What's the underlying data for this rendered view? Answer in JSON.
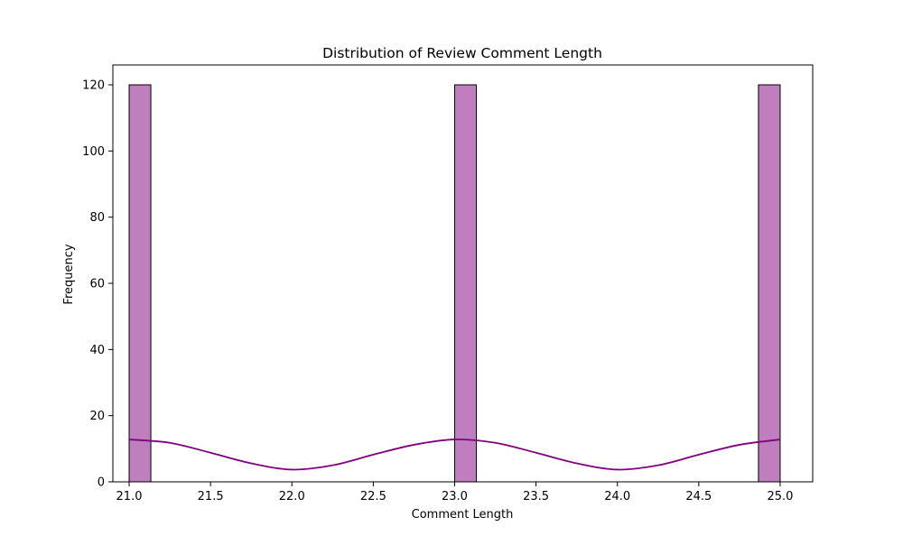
{
  "chart_data": {
    "type": "bar",
    "title": "Distribution of Review Comment Length",
    "xlabel": "Comment Length",
    "ylabel": "Frequency",
    "xlim": [
      20.9,
      25.2
    ],
    "ylim": [
      0,
      126
    ],
    "x_ticks": [
      21.0,
      21.5,
      22.0,
      22.5,
      23.0,
      23.5,
      24.0,
      24.5,
      25.0
    ],
    "x_tick_labels": [
      "21.0",
      "21.5",
      "22.0",
      "22.5",
      "23.0",
      "23.5",
      "24.0",
      "24.5",
      "25.0"
    ],
    "y_ticks": [
      0,
      20,
      40,
      60,
      80,
      100,
      120
    ],
    "y_tick_labels": [
      "0",
      "20",
      "40",
      "60",
      "80",
      "100",
      "120"
    ],
    "bars": [
      {
        "x_start": 21.0,
        "x_end": 21.1333,
        "value": 120
      },
      {
        "x_start": 23.0,
        "x_end": 23.1333,
        "value": 120
      },
      {
        "x_start": 24.8667,
        "x_end": 25.0,
        "value": 120
      }
    ],
    "kde_curve": {
      "x": [
        21.0,
        21.25,
        21.5,
        21.75,
        22.0,
        22.25,
        22.5,
        22.75,
        23.0,
        23.25,
        23.5,
        23.75,
        24.0,
        24.25,
        24.5,
        24.75,
        25.0
      ],
      "y": [
        12.8,
        11.8,
        8.8,
        5.6,
        3.7,
        5.0,
        8.2,
        11.2,
        12.8,
        11.8,
        8.8,
        5.6,
        3.7,
        5.0,
        8.2,
        11.2,
        12.8
      ]
    },
    "grid": false,
    "bar_color": "#bf7fbf",
    "bar_edge_color": "#000000",
    "kde_color": "#800080"
  }
}
